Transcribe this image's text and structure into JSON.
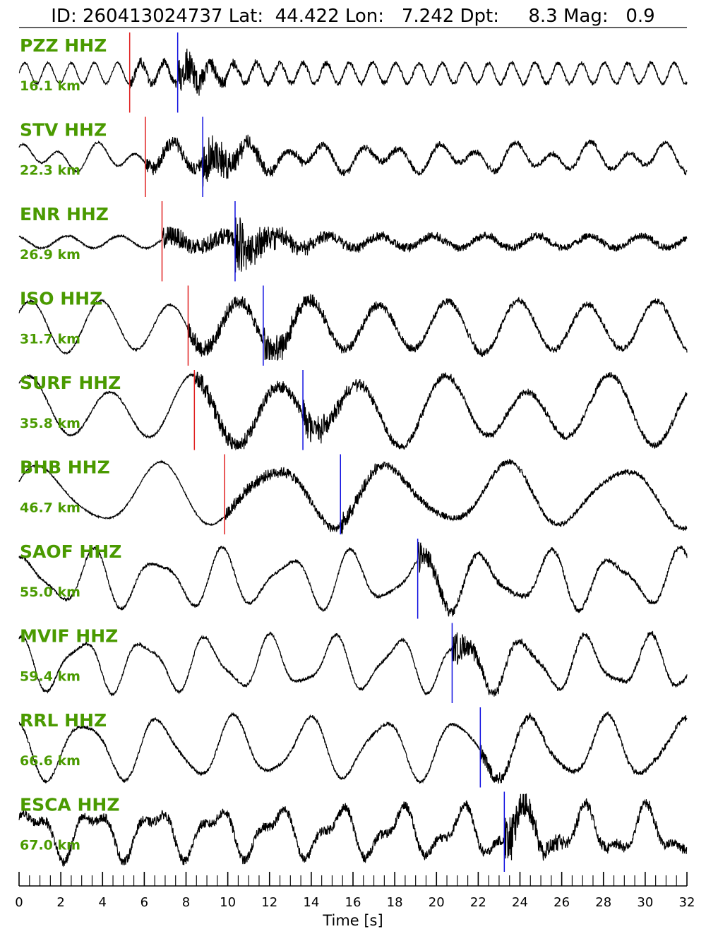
{
  "header": {
    "title": "ID: 260413024737 Lat:  44.422 Lon:   7.242 Dpt:     8.3 Mag:   0.9"
  },
  "colors": {
    "label": "#4a9a00",
    "p_pick": "#e02020",
    "s_pick": "#1010e0",
    "trace": "#000000"
  },
  "chart_data": {
    "type": "line",
    "title": "ID: 260413024737 Lat:  44.422 Lon:   7.242 Dpt:     8.3 Mag:   0.9",
    "xlabel": "Time [s]",
    "ylabel": "",
    "xlim": [
      0,
      32
    ],
    "xticks": [
      "0",
      "2",
      "4",
      "6",
      "8",
      "10",
      "12",
      "14",
      "16",
      "18",
      "20",
      "22",
      "24",
      "26",
      "28",
      "30",
      "32"
    ],
    "minor_tick_step": 0.5,
    "grid": false,
    "traces": [
      {
        "station": "PZZ HHZ",
        "distance": "16.1 km",
        "p_pick": 5.3,
        "s_pick": 7.6,
        "amp": 0.32,
        "lf": [
          [
            0.9,
            0.5,
            0.0
          ]
        ],
        "noise_pre": 0.04,
        "noise_post": 0.15,
        "burst_amp": 0.85,
        "post_decay": 5
      },
      {
        "station": "STV HHZ",
        "distance": "22.3 km",
        "p_pick": 6.05,
        "s_pick": 8.8,
        "amp": 0.38,
        "lf": [
          [
            0.55,
            0.4,
            1.2
          ],
          [
            0.3,
            0.25,
            0.3
          ]
        ],
        "noise_pre": 0.03,
        "noise_post": 0.18,
        "burst_amp": 0.9,
        "post_decay": 6
      },
      {
        "station": "ENR HHZ",
        "distance": "26.9 km",
        "p_pick": 6.85,
        "s_pick": 10.35,
        "amp": 0.38,
        "lf": [
          [
            0.4,
            0.25,
            2.0
          ]
        ],
        "noise_pre": 0.03,
        "noise_post": 0.25,
        "burst_amp": 1.0,
        "post_decay": 6
      },
      {
        "station": "ISO HHZ",
        "distance": "31.7 km",
        "p_pick": 8.1,
        "s_pick": 11.7,
        "amp": 0.42,
        "lf": [
          [
            0.3,
            0.9,
            0.5
          ],
          [
            0.2,
            0.1,
            2.0
          ]
        ],
        "noise_pre": 0.03,
        "noise_post": 0.2,
        "burst_amp": 0.6,
        "post_decay": 5
      },
      {
        "station": "SURF HHZ",
        "distance": "35.8 km",
        "p_pick": 8.4,
        "s_pick": 13.6,
        "amp": 0.48,
        "lf": [
          [
            0.25,
            0.9,
            1.0
          ],
          [
            0.15,
            0.3,
            0.5
          ]
        ],
        "noise_pre": 0.03,
        "noise_post": 0.18,
        "burst_amp": 0.45,
        "post_decay": 5
      },
      {
        "station": "BHB HHZ",
        "distance": "46.7 km",
        "p_pick": 9.85,
        "s_pick": 15.4,
        "amp": 0.48,
        "lf": [
          [
            0.18,
            0.9,
            0.3
          ],
          [
            0.3,
            0.2,
            1.0
          ]
        ],
        "noise_pre": 0.02,
        "noise_post": 0.12,
        "burst_amp": 0.25,
        "post_decay": 8
      },
      {
        "station": "SAOF HHZ",
        "distance": "55.0 km",
        "p_pick": null,
        "s_pick": 19.1,
        "amp": 0.48,
        "lf": [
          [
            0.32,
            0.75,
            0.8
          ],
          [
            0.5,
            0.3,
            2.5
          ]
        ],
        "noise_pre": 0.04,
        "noise_post": 0.12,
        "burst_amp": 0.4,
        "post_decay": 3
      },
      {
        "station": "MVIF HHZ",
        "distance": "59.4 km",
        "p_pick": null,
        "s_pick": 20.75,
        "amp": 0.45,
        "lf": [
          [
            0.33,
            0.8,
            1.7
          ],
          [
            0.6,
            0.25,
            0.4
          ]
        ],
        "noise_pre": 0.04,
        "noise_post": 0.1,
        "burst_amp": 0.5,
        "post_decay": 2
      },
      {
        "station": "RRL HHZ",
        "distance": "66.6 km",
        "p_pick": null,
        "s_pick": 22.1,
        "amp": 0.5,
        "lf": [
          [
            0.28,
            0.85,
            2.3
          ],
          [
            0.5,
            0.2,
            0.9
          ]
        ],
        "noise_pre": 0.04,
        "noise_post": 0.08,
        "burst_amp": 0.25,
        "post_decay": 3
      },
      {
        "station": "ESCA HHZ",
        "distance": "67.0 km",
        "p_pick": null,
        "s_pick": 23.25,
        "amp": 0.48,
        "lf": [
          [
            0.34,
            0.65,
            0.2
          ],
          [
            0.7,
            0.3,
            1.5
          ]
        ],
        "noise_pre": 0.12,
        "noise_post": 0.14,
        "burst_amp": 0.7,
        "post_decay": 2
      }
    ]
  }
}
